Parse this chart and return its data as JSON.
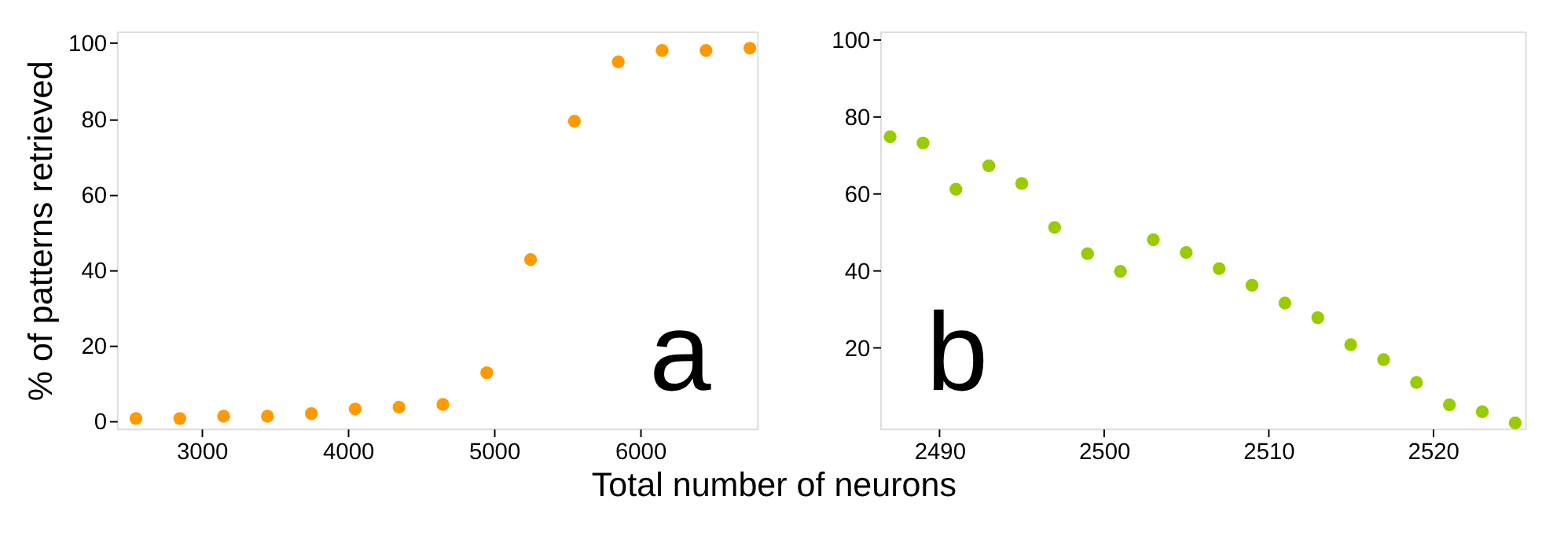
{
  "chart_data": [
    {
      "type": "scatter",
      "ylabel": "% of patterns retrieved",
      "xlabel": "Total number of neurons",
      "annotations": [
        "a"
      ],
      "marker": "circle",
      "grid": false,
      "x": [
        2550,
        2850,
        3150,
        3450,
        3750,
        4050,
        4350,
        4650,
        4950,
        5250,
        5550,
        5850,
        6150,
        6450,
        6750
      ],
      "series": [
        {
          "color": "#ff9900",
          "values": [
            0.7,
            0.7,
            1.3,
            1.3,
            2,
            3.2,
            3.7,
            4.4,
            12.8,
            42.7,
            79.3,
            95,
            98,
            98,
            98.6
          ]
        }
      ],
      "xlim": [
        2420,
        6800
      ],
      "xticks": [
        3000,
        4000,
        5000,
        6000
      ],
      "ylim": [
        -2,
        103
      ],
      "yticks": [
        0,
        20,
        40,
        60,
        80,
        100
      ]
    },
    {
      "type": "scatter",
      "annotations": [
        "b"
      ],
      "marker": "circle",
      "grid": false,
      "x": [
        2487,
        2489,
        2491,
        2493,
        2495,
        2497,
        2499,
        2501,
        2503,
        2505,
        2507,
        2509,
        2511,
        2513,
        2515,
        2517,
        2519,
        2521,
        2523,
        2525
      ],
      "series": [
        {
          "color": "#99cc00",
          "values": [
            74.7,
            73.1,
            61.1,
            67.2,
            62.6,
            51.2,
            44.4,
            39.8,
            48,
            44.7,
            40.5,
            36.2,
            31.6,
            27.8,
            20.8,
            16.9,
            11,
            5.2,
            3.4,
            0.5
          ]
        }
      ],
      "xlim": [
        2486.4,
        2525.6
      ],
      "xticks": [
        2490,
        2500,
        2510,
        2520
      ],
      "ylim": [
        -1,
        102
      ],
      "yticks": [
        20,
        40,
        60,
        80,
        100
      ]
    }
  ]
}
